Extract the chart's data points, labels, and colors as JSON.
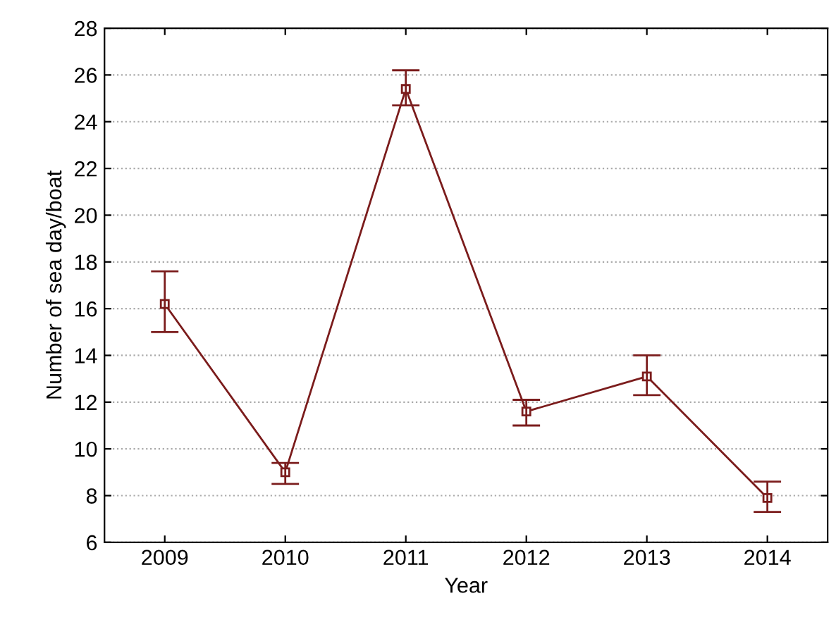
{
  "chart_data": {
    "type": "line",
    "xlabel": "Year",
    "ylabel": "Number of sea day/boat",
    "categories": [
      "2009",
      "2010",
      "2011",
      "2012",
      "2013",
      "2014"
    ],
    "series": [
      {
        "color": "#7b1c1c",
        "values": [
          16.2,
          9.0,
          25.4,
          11.6,
          13.1,
          7.9
        ],
        "errors": [
          [
            15.0,
            17.6
          ],
          [
            8.5,
            9.4
          ],
          [
            24.7,
            26.2
          ],
          [
            11.0,
            12.1
          ],
          [
            12.3,
            14.0
          ],
          [
            7.3,
            8.6
          ]
        ]
      }
    ],
    "ylim": [
      6,
      28
    ],
    "yticks": [
      6,
      8,
      10,
      12,
      14,
      16,
      18,
      20,
      22,
      24,
      26,
      28
    ],
    "grid": "y",
    "marker": "square",
    "line_style": "solid",
    "legend": false
  }
}
